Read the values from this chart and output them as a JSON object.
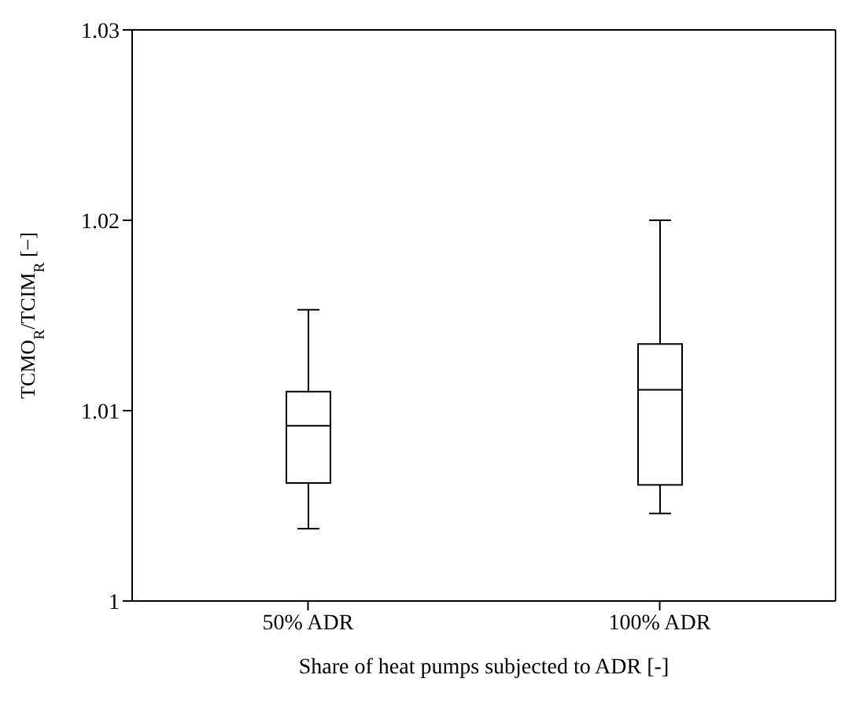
{
  "chart_data": {
    "type": "box",
    "categories": [
      "50% ADR",
      "100% ADR"
    ],
    "boxes": [
      {
        "low": 1.0038,
        "q1": 1.0062,
        "median": 1.0092,
        "q3": 1.011,
        "high": 1.0153
      },
      {
        "low": 1.0046,
        "q1": 1.0061,
        "median": 1.0111,
        "q3": 1.0135,
        "high": 1.02
      }
    ],
    "xlabel": "Share of heat pumps subjected to ADR [-]",
    "ylabel": "TCMO$_{R}$/TCIM$_{R}$ [−]",
    "ylim": [
      1,
      1.03
    ],
    "yticks": [
      1,
      1.01,
      1.02,
      1.03
    ],
    "color": "#000000",
    "grid": false,
    "legend": false
  }
}
